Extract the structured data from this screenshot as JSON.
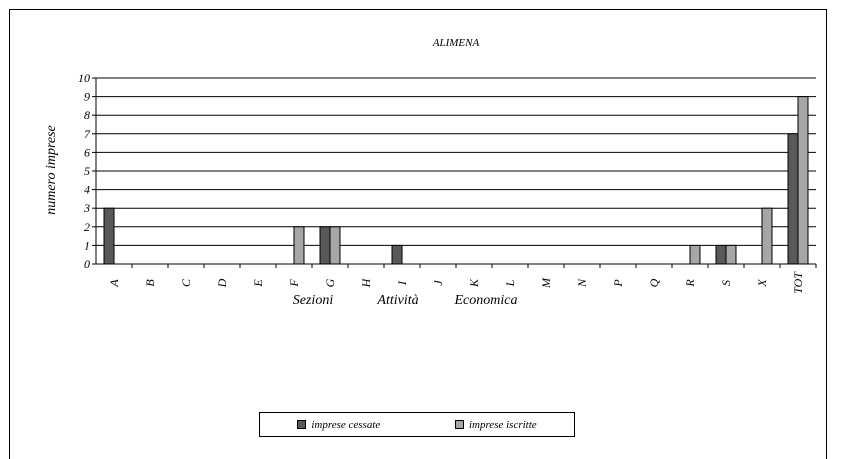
{
  "chart_data": {
    "type": "bar",
    "title": "ALIMENA",
    "ylabel": "numero imprese",
    "xlabel_words": [
      "Sezioni",
      "Attività",
      "Economica"
    ],
    "categories": [
      "A",
      "B",
      "C",
      "D",
      "E",
      "F",
      "G",
      "H",
      "I",
      "J",
      "K",
      "L",
      "M",
      "N",
      "P",
      "Q",
      "R",
      "S",
      "X",
      "TOT"
    ],
    "ylim": [
      0,
      10
    ],
    "yticks": [
      0,
      1,
      2,
      3,
      4,
      5,
      6,
      7,
      8,
      9,
      10
    ],
    "grid": true,
    "legend_position": "bottom",
    "series": [
      {
        "name": "imprese cessate",
        "color": "#595959",
        "values": [
          3,
          0,
          0,
          0,
          0,
          0,
          2,
          0,
          1,
          0,
          0,
          0,
          0,
          0,
          0,
          0,
          0,
          1,
          0,
          7
        ]
      },
      {
        "name": "imprese iscritte",
        "color": "#a6a6a6",
        "values": [
          0,
          0,
          0,
          0,
          0,
          2,
          2,
          0,
          0,
          0,
          0,
          0,
          0,
          0,
          0,
          0,
          1,
          1,
          3,
          9
        ]
      }
    ]
  }
}
